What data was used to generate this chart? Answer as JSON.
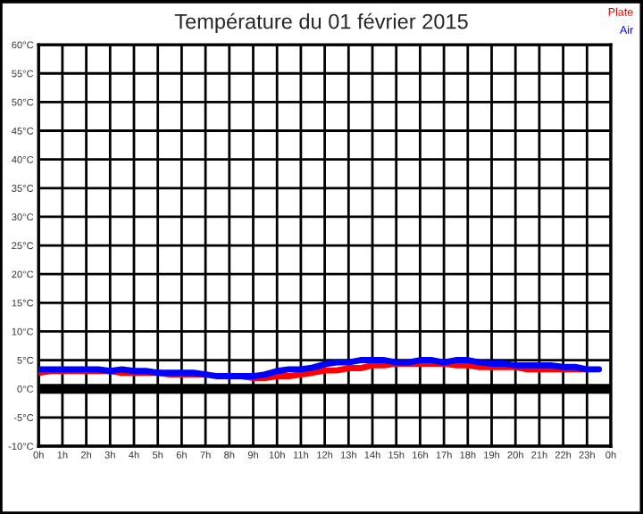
{
  "chart_data": {
    "type": "line",
    "title": "Température du 01 février 2015",
    "x": [
      "2015-02-01T00:00",
      "2015-02-01T00:30",
      "2015-02-01T01:00",
      "2015-02-01T01:30",
      "2015-02-01T02:00",
      "2015-02-01T02:30",
      "2015-02-01T03:00",
      "2015-02-01T03:30",
      "2015-02-01T04:00",
      "2015-02-01T04:30",
      "2015-02-01T05:00",
      "2015-02-01T05:30",
      "2015-02-01T06:00",
      "2015-02-01T06:30",
      "2015-02-01T07:00",
      "2015-02-01T07:30",
      "2015-02-01T08:00",
      "2015-02-01T08:30",
      "2015-02-01T09:00",
      "2015-02-01T09:30",
      "2015-02-01T10:00",
      "2015-02-01T10:30",
      "2015-02-01T11:00",
      "2015-02-01T11:30",
      "2015-02-01T12:00",
      "2015-02-01T12:30",
      "2015-02-01T13:00",
      "2015-02-01T13:30",
      "2015-02-01T14:00",
      "2015-02-01T14:30",
      "2015-02-01T15:00",
      "2015-02-01T15:30",
      "2015-02-01T16:00",
      "2015-02-01T16:30",
      "2015-02-01T17:00",
      "2015-02-01T17:30",
      "2015-02-01T18:00",
      "2015-02-01T18:30",
      "2015-02-01T19:00",
      "2015-02-01T19:30",
      "2015-02-01T20:00",
      "2015-02-01T20:30",
      "2015-02-01T21:00",
      "2015-02-01T21:30",
      "2015-02-01T22:00",
      "2015-02-01T22:30",
      "2015-02-01T23:00",
      "2015-02-01T23:30"
    ],
    "series": [
      {
        "name": "Plate",
        "color": "#ff0000",
        "values": [
          2.8,
          3.1,
          3.1,
          3.1,
          3.1,
          3.1,
          3.1,
          2.8,
          2.8,
          2.8,
          2.8,
          2.5,
          2.5,
          2.5,
          2.5,
          null,
          null,
          2.2,
          1.9,
          1.9,
          2.2,
          2.2,
          2.5,
          2.8,
          3.2,
          3.2,
          3.6,
          3.6,
          4.1,
          4.1,
          4.4,
          4.4,
          4.4,
          4.4,
          4.4,
          4.1,
          4.1,
          3.8,
          3.8,
          3.8,
          3.8,
          3.4,
          3.4,
          3.4,
          3.4,
          3.4,
          3.4,
          null
        ]
      },
      {
        "name": "Air",
        "color": "#0000ff",
        "values": [
          3.4,
          3.4,
          3.4,
          3.4,
          3.4,
          3.4,
          3.1,
          3.4,
          3.1,
          3.1,
          2.8,
          2.8,
          2.8,
          2.8,
          2.5,
          2.2,
          2.2,
          2.2,
          2.2,
          2.5,
          3.1,
          3.4,
          3.4,
          3.7,
          4.3,
          4.6,
          4.6,
          5.0,
          5.0,
          5.0,
          4.6,
          4.6,
          5.0,
          5.0,
          4.6,
          5.0,
          5.0,
          4.6,
          4.4,
          4.4,
          4.1,
          4.1,
          4.1,
          4.1,
          3.8,
          3.8,
          3.4,
          3.4
        ]
      }
    ],
    "xlim": [
      "2015-02-01T00:00",
      "2015-02-02T00:00"
    ],
    "xticks": [
      {
        "value": "2015-02-01T00:00",
        "label": "0h"
      },
      {
        "value": "2015-02-01T01:00",
        "label": "1h"
      },
      {
        "value": "2015-02-01T02:00",
        "label": "2h"
      },
      {
        "value": "2015-02-01T03:00",
        "label": "3h"
      },
      {
        "value": "2015-02-01T04:00",
        "label": "4h"
      },
      {
        "value": "2015-02-01T05:00",
        "label": "5h"
      },
      {
        "value": "2015-02-01T06:00",
        "label": "6h"
      },
      {
        "value": "2015-02-01T07:00",
        "label": "7h"
      },
      {
        "value": "2015-02-01T08:00",
        "label": "8h"
      },
      {
        "value": "2015-02-01T09:00",
        "label": "9h"
      },
      {
        "value": "2015-02-01T10:00",
        "label": "10h"
      },
      {
        "value": "2015-02-01T11:00",
        "label": "11h"
      },
      {
        "value": "2015-02-01T12:00",
        "label": "12h"
      },
      {
        "value": "2015-02-01T13:00",
        "label": "13h"
      },
      {
        "value": "2015-02-01T14:00",
        "label": "14h"
      },
      {
        "value": "2015-02-01T15:00",
        "label": "15h"
      },
      {
        "value": "2015-02-01T16:00",
        "label": "16h"
      },
      {
        "value": "2015-02-01T17:00",
        "label": "17h"
      },
      {
        "value": "2015-02-01T18:00",
        "label": "18h"
      },
      {
        "value": "2015-02-01T19:00",
        "label": "19h"
      },
      {
        "value": "2015-02-01T20:00",
        "label": "20h"
      },
      {
        "value": "2015-02-01T21:00",
        "label": "21h"
      },
      {
        "value": "2015-02-01T22:00",
        "label": "22h"
      },
      {
        "value": "2015-02-01T23:00",
        "label": "23h"
      },
      {
        "value": "2015-02-02T00:00",
        "label": "0h"
      }
    ],
    "ylim": [
      -10,
      60
    ],
    "yticks": [
      {
        "value": -10,
        "label": "-10°C"
      },
      {
        "value": -5,
        "label": "-5°C"
      },
      {
        "value": 0,
        "label": "0°C"
      },
      {
        "value": 5,
        "label": "5°C"
      },
      {
        "value": 10,
        "label": "10°C"
      },
      {
        "value": 15,
        "label": "15°C"
      },
      {
        "value": 20,
        "label": "20°C"
      },
      {
        "value": 25,
        "label": "25°C"
      },
      {
        "value": 30,
        "label": "30°C"
      },
      {
        "value": 35,
        "label": "35°C"
      },
      {
        "value": 40,
        "label": "40°C"
      },
      {
        "value": 45,
        "label": "45°C"
      },
      {
        "value": 50,
        "label": "50°C"
      },
      {
        "value": 55,
        "label": "55°C"
      },
      {
        "value": 60,
        "label": "60°C"
      }
    ],
    "ref_lines": [
      {
        "axis": "y",
        "value": 0,
        "color": "#000000"
      }
    ],
    "grid": true,
    "legend": "top right",
    "marker": "none",
    "line_style": "solid"
  }
}
